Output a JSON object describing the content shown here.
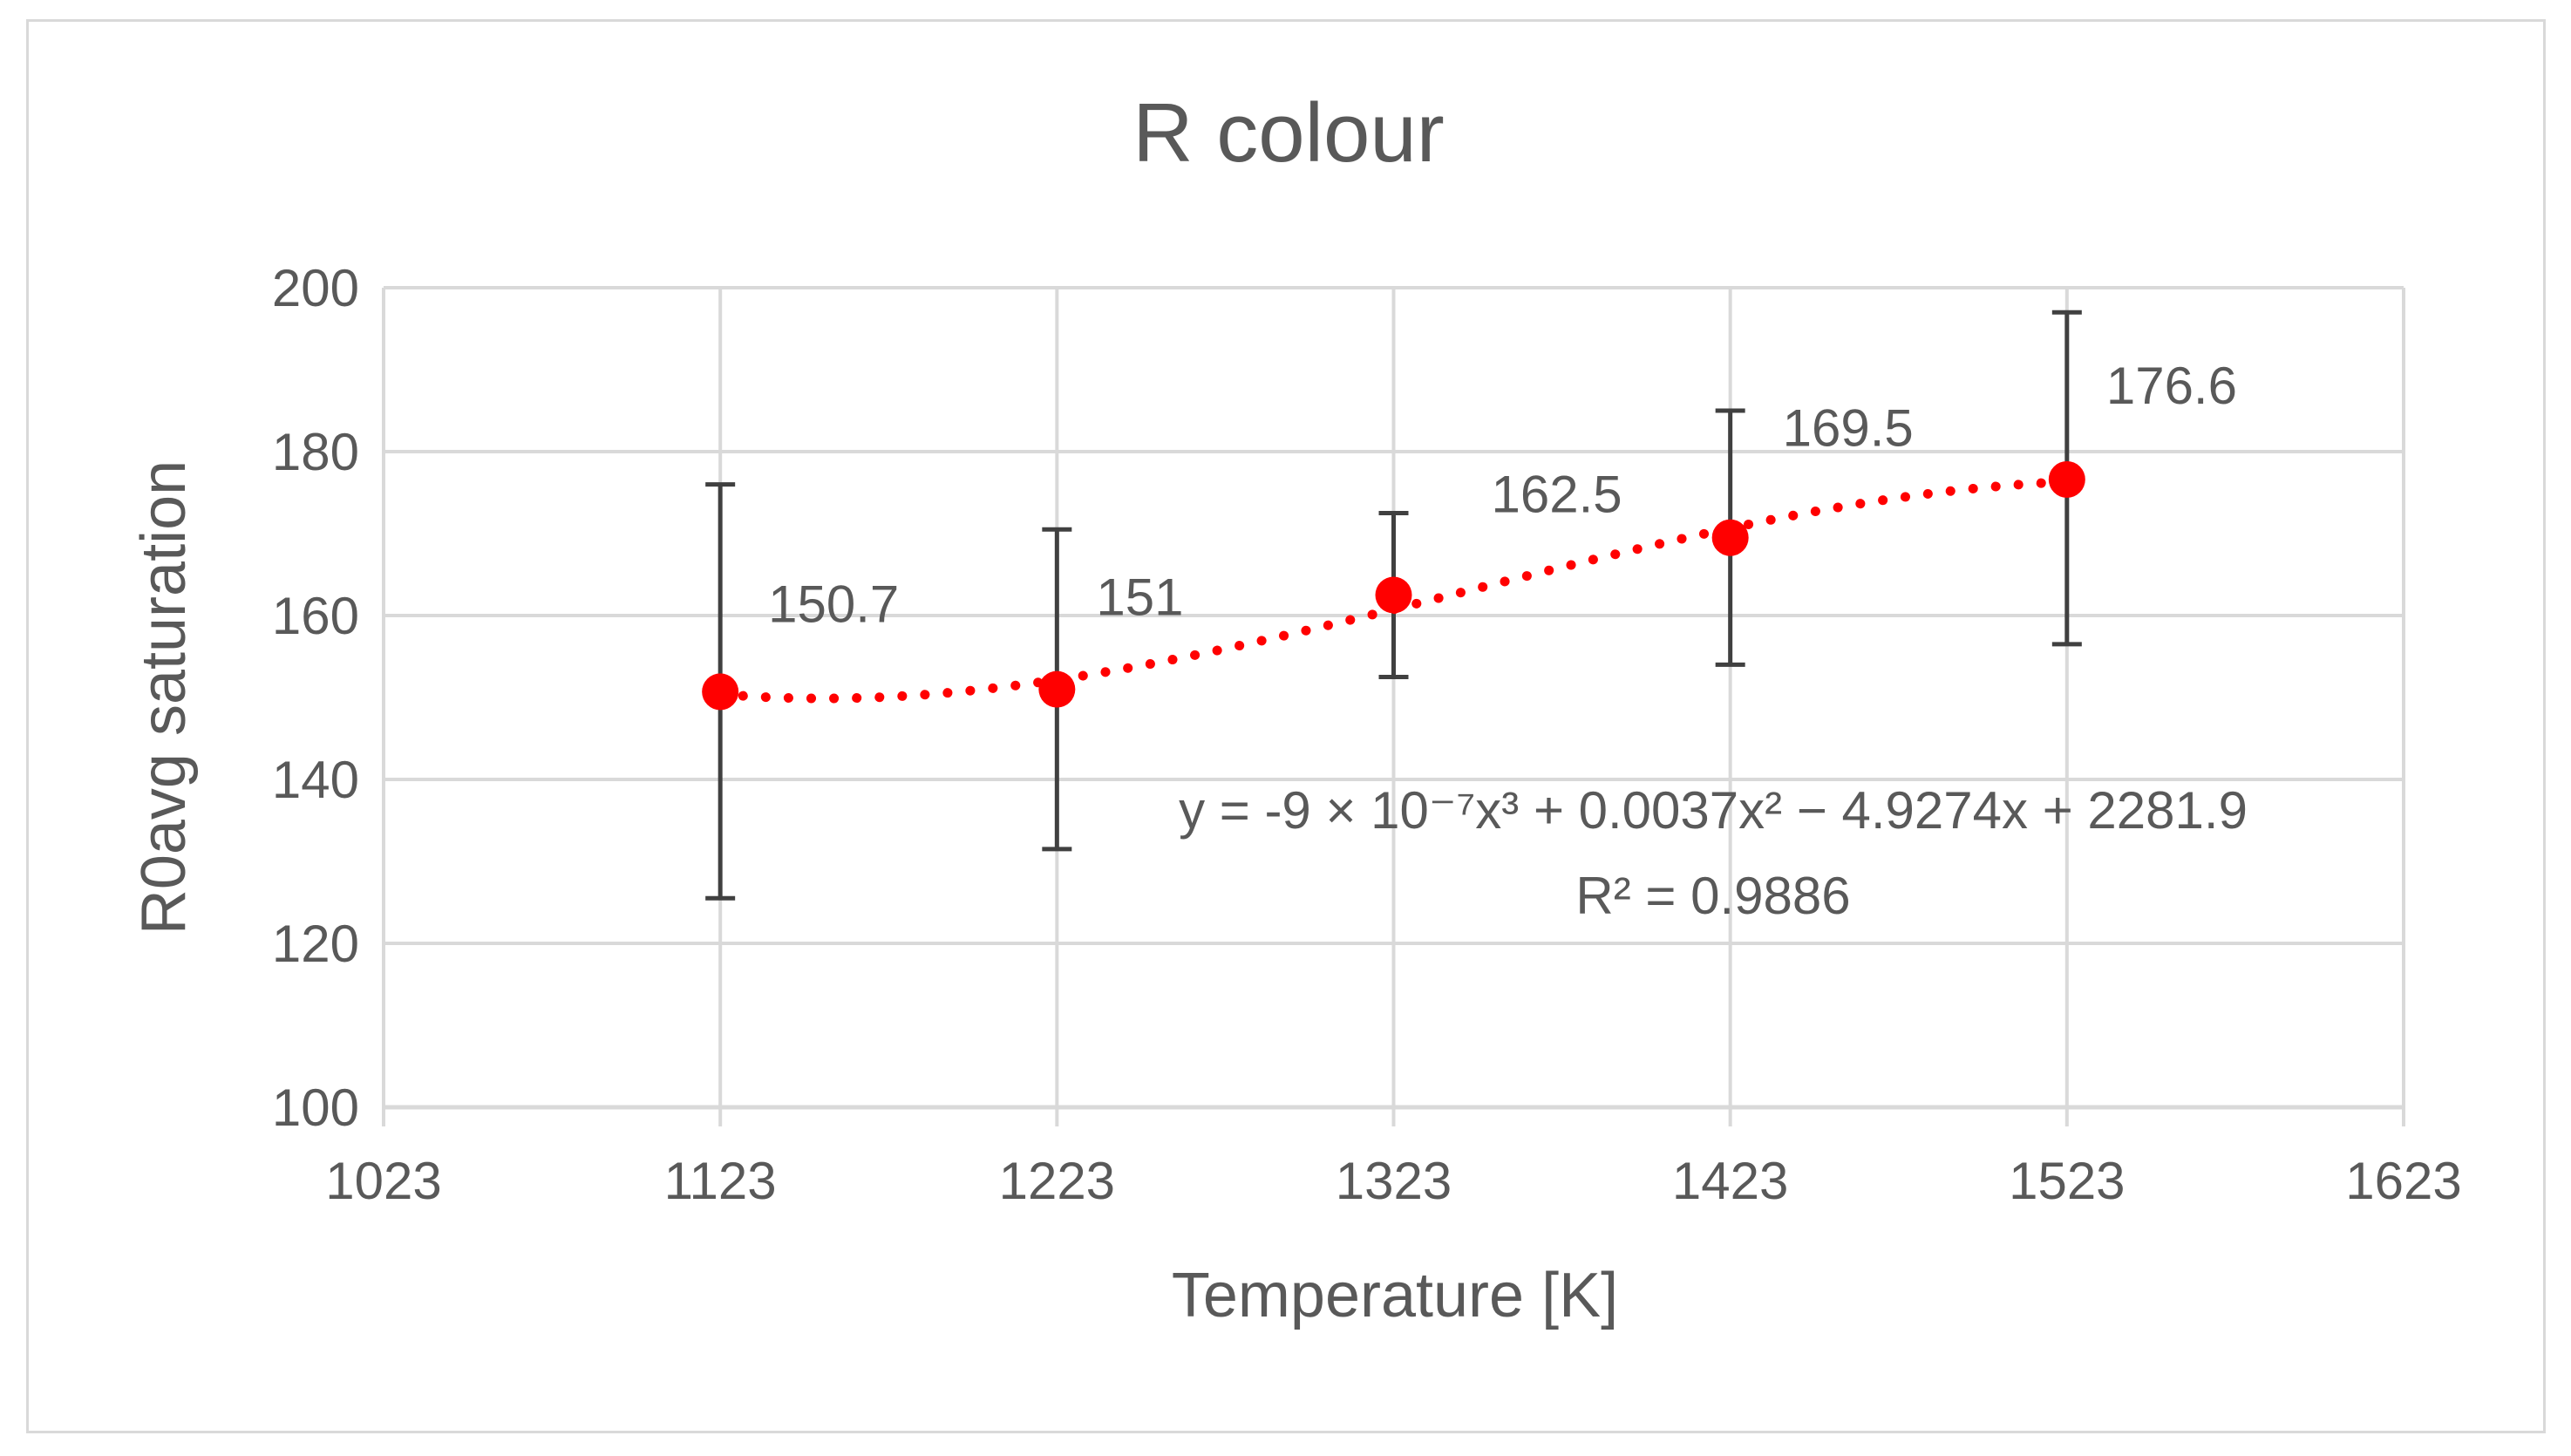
{
  "chart_data": {
    "type": "scatter",
    "title": "R colour",
    "xlabel": "Temperature [K]",
    "ylabel": "R0avg saturation",
    "xlim": [
      1023,
      1623
    ],
    "ylim": [
      100,
      200
    ],
    "x_ticks": [
      1023,
      1123,
      1223,
      1323,
      1423,
      1523,
      1623
    ],
    "y_ticks": [
      100,
      120,
      140,
      160,
      180,
      200
    ],
    "grid": true,
    "points": [
      {
        "x": 1123,
        "y": 150.7,
        "label": "150.7",
        "err_low": 125.5,
        "err_high": 176
      },
      {
        "x": 1223,
        "y": 151,
        "label": "151",
        "err_low": 131.5,
        "err_high": 170.5
      },
      {
        "x": 1323,
        "y": 162.5,
        "label": "162.5",
        "err_low": 152.5,
        "err_high": 172.5
      },
      {
        "x": 1423,
        "y": 169.5,
        "label": "169.5",
        "err_low": 154,
        "err_high": 185
      },
      {
        "x": 1523,
        "y": 176.6,
        "label": "176.6",
        "err_low": 156.5,
        "err_high": 197
      }
    ],
    "trendline": {
      "type": "polynomial",
      "order": 3,
      "equation": "y = -9 × 10⁻⁷x³ + 0.0037x² − 4.9274x + 2281.9",
      "r_squared": "R² = 0.9886"
    },
    "colors": {
      "marker": "#ff0000",
      "trendline": "#ff0000",
      "error_bar": "#404040",
      "grid": "#d9d9d9",
      "text": "#595959"
    }
  }
}
